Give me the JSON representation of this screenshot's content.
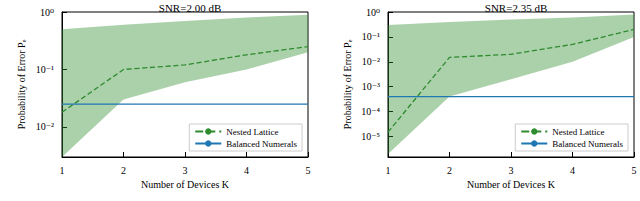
{
  "chart_data": [
    {
      "type": "line",
      "title": "SNR=2.00 dB",
      "x_label": "Number of Devices K",
      "y_label": "Probability of Error Pₑ",
      "x": [
        1,
        2,
        3,
        4,
        5
      ],
      "xlim": [
        1,
        5
      ],
      "xticks": [
        1,
        2,
        3,
        4,
        5
      ],
      "log": "y",
      "ylim": [
        0.003,
        1
      ],
      "yticks": [
        {
          "value": 0.01,
          "label": "10⁻²"
        },
        {
          "value": 0.1,
          "label": "10⁻¹"
        },
        {
          "value": 1,
          "label": "10⁰"
        }
      ],
      "grid": false,
      "legend": "lower right",
      "series": [
        {
          "name": "Nested Lattice",
          "color": "#2e8b2e",
          "line_style": "dashed",
          "values": [
            0.018,
            0.1,
            0.12,
            0.18,
            0.25
          ],
          "lower": [
            0.003,
            0.03,
            0.06,
            0.1,
            0.2
          ],
          "upper": [
            0.5,
            0.6,
            0.7,
            0.8,
            0.9
          ]
        },
        {
          "name": "Balanced Numerals",
          "color": "#1f77b4",
          "line_style": "solid",
          "values": [
            0.025,
            0.025,
            0.025,
            0.025,
            0.025
          ]
        }
      ]
    },
    {
      "type": "line",
      "title": "SNR=2.35 dB",
      "x_label": "Number of Devices K",
      "y_label": "Probability of Error Pₑ",
      "x": [
        1,
        2,
        3,
        4,
        5
      ],
      "xlim": [
        1,
        5
      ],
      "xticks": [
        1,
        2,
        3,
        4,
        5
      ],
      "log": "y",
      "ylim": [
        1.5e-06,
        1
      ],
      "yticks": [
        {
          "value": 1e-05,
          "label": "10⁻⁵"
        },
        {
          "value": 0.0001,
          "label": "10⁻⁴"
        },
        {
          "value": 0.001,
          "label": "10⁻³"
        },
        {
          "value": 0.01,
          "label": "10⁻²"
        },
        {
          "value": 0.1,
          "label": "10⁻¹"
        },
        {
          "value": 1,
          "label": "10⁰"
        }
      ],
      "grid": false,
      "legend": "lower right",
      "series": [
        {
          "name": "Nested Lattice",
          "color": "#2e8b2e",
          "line_style": "dashed",
          "values": [
            1.5e-05,
            0.015,
            0.02,
            0.05,
            0.2
          ],
          "lower": [
            2e-06,
            0.0004,
            0.002,
            0.01,
            0.1
          ],
          "upper": [
            0.3,
            0.4,
            0.5,
            0.6,
            0.8
          ]
        },
        {
          "name": "Balanced Numerals",
          "color": "#1f77b4",
          "line_style": "solid",
          "values": [
            0.0004,
            0.0004,
            0.0004,
            0.0004,
            0.0004
          ]
        }
      ]
    }
  ]
}
